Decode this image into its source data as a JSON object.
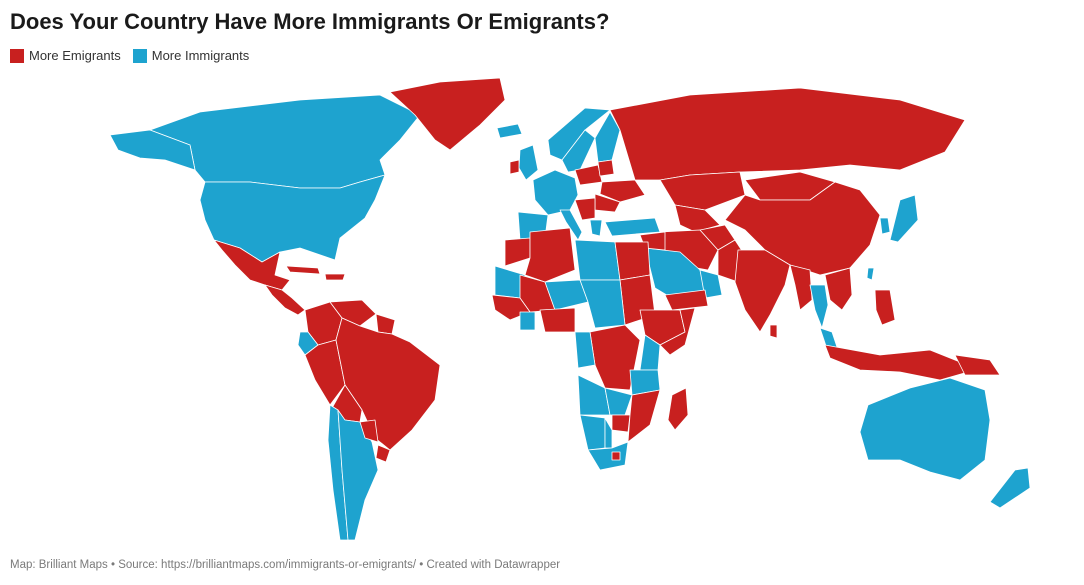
{
  "title": "Does Your Country Have More Immigrants Or Emigrants?",
  "legend": {
    "items": [
      {
        "label": "More Emigrants",
        "color": "#c8201f"
      },
      {
        "label": "More Immigrants",
        "color": "#1ea3cf"
      }
    ]
  },
  "footer": {
    "map_by": "Map: Brilliant Maps",
    "sep1": " • ",
    "source_prefix": "Source: ",
    "source_url": "https://brilliantmaps.com/immigrants-or-emigrants/",
    "sep2": " • ",
    "credit": "Created with Datawrapper"
  },
  "map": {
    "category_colors": {
      "emigrants": "#c8201f",
      "immigrants": "#1ea3cf"
    },
    "regions": [
      {
        "name": "Canada",
        "category": "immigrants"
      },
      {
        "name": "United States",
        "category": "immigrants"
      },
      {
        "name": "Alaska",
        "category": "immigrants"
      },
      {
        "name": "Greenland",
        "category": "emigrants"
      },
      {
        "name": "Mexico",
        "category": "emigrants"
      },
      {
        "name": "Central America",
        "category": "emigrants"
      },
      {
        "name": "Cuba",
        "category": "emigrants"
      },
      {
        "name": "Hispaniola",
        "category": "emigrants"
      },
      {
        "name": "Colombia",
        "category": "emigrants"
      },
      {
        "name": "Venezuela",
        "category": "emigrants"
      },
      {
        "name": "Guianas",
        "category": "emigrants"
      },
      {
        "name": "Ecuador",
        "category": "immigrants"
      },
      {
        "name": "Peru",
        "category": "emigrants"
      },
      {
        "name": "Brazil",
        "category": "emigrants"
      },
      {
        "name": "Bolivia",
        "category": "emigrants"
      },
      {
        "name": "Chile",
        "category": "immigrants"
      },
      {
        "name": "Argentina",
        "category": "immigrants"
      },
      {
        "name": "Uruguay",
        "category": "emigrants"
      },
      {
        "name": "Paraguay",
        "category": "emigrants"
      },
      {
        "name": "Iceland",
        "category": "immigrants"
      },
      {
        "name": "Norway",
        "category": "immigrants"
      },
      {
        "name": "Sweden",
        "category": "immigrants"
      },
      {
        "name": "Finland",
        "category": "immigrants"
      },
      {
        "name": "United Kingdom",
        "category": "immigrants"
      },
      {
        "name": "Ireland",
        "category": "emigrants"
      },
      {
        "name": "Western Europe",
        "category": "immigrants"
      },
      {
        "name": "Iberia",
        "category": "immigrants"
      },
      {
        "name": "Italy",
        "category": "immigrants"
      },
      {
        "name": "Poland",
        "category": "emigrants"
      },
      {
        "name": "Baltics",
        "category": "emigrants"
      },
      {
        "name": "Ukraine",
        "category": "emigrants"
      },
      {
        "name": "Romania",
        "category": "emigrants"
      },
      {
        "name": "Balkans",
        "category": "emigrants"
      },
      {
        "name": "Greece",
        "category": "immigrants"
      },
      {
        "name": "Turkey",
        "category": "immigrants"
      },
      {
        "name": "Russia",
        "category": "emigrants"
      },
      {
        "name": "Kazakhstan",
        "category": "emigrants"
      },
      {
        "name": "Central Asia",
        "category": "emigrants"
      },
      {
        "name": "Mongolia",
        "category": "emigrants"
      },
      {
        "name": "China",
        "category": "emigrants"
      },
      {
        "name": "South Korea",
        "category": "immigrants"
      },
      {
        "name": "Japan",
        "category": "immigrants"
      },
      {
        "name": "Taiwan",
        "category": "immigrants"
      },
      {
        "name": "Iran",
        "category": "emigrants"
      },
      {
        "name": "Afghanistan",
        "category": "emigrants"
      },
      {
        "name": "Pakistan",
        "category": "emigrants"
      },
      {
        "name": "India",
        "category": "emigrants"
      },
      {
        "name": "Sri Lanka",
        "category": "emigrants"
      },
      {
        "name": "Myanmar",
        "category": "emigrants"
      },
      {
        "name": "Thailand",
        "category": "immigrants"
      },
      {
        "name": "Indochina",
        "category": "emigrants"
      },
      {
        "name": "Malaysia",
        "category": "immigrants"
      },
      {
        "name": "Philippines",
        "category": "emigrants"
      },
      {
        "name": "Indonesia",
        "category": "emigrants"
      },
      {
        "name": "Papua New Guinea",
        "category": "emigrants"
      },
      {
        "name": "Australia",
        "category": "immigrants"
      },
      {
        "name": "New Zealand",
        "category": "immigrants"
      },
      {
        "name": "Saudi Arabia",
        "category": "immigrants"
      },
      {
        "name": "Gulf States",
        "category": "immigrants"
      },
      {
        "name": "Yemen",
        "category": "emigrants"
      },
      {
        "name": "Iraq",
        "category": "emigrants"
      },
      {
        "name": "Morocco",
        "category": "emigrants"
      },
      {
        "name": "Algeria",
        "category": "emigrants"
      },
      {
        "name": "Libya",
        "category": "immigrants"
      },
      {
        "name": "Egypt",
        "category": "emigrants"
      },
      {
        "name": "Sudan",
        "category": "emigrants"
      },
      {
        "name": "Mauritania",
        "category": "immigrants"
      },
      {
        "name": "Mali",
        "category": "emigrants"
      },
      {
        "name": "Niger",
        "category": "immigrants"
      },
      {
        "name": "Chad",
        "category": "immigrants"
      },
      {
        "name": "West Africa Coast",
        "category": "emigrants"
      },
      {
        "name": "Ivory Coast",
        "category": "immigrants"
      },
      {
        "name": "Nigeria",
        "category": "emigrants"
      },
      {
        "name": "Ethiopia",
        "category": "emigrants"
      },
      {
        "name": "Somalia",
        "category": "emigrants"
      },
      {
        "name": "Kenya",
        "category": "immigrants"
      },
      {
        "name": "DR Congo",
        "category": "emigrants"
      },
      {
        "name": "Congo",
        "category": "immigrants"
      },
      {
        "name": "Angola",
        "category": "immigrants"
      },
      {
        "name": "Tanzania",
        "category": "immigrants"
      },
      {
        "name": "Zambia",
        "category": "immigrants"
      },
      {
        "name": "Zimbabwe",
        "category": "emigrants"
      },
      {
        "name": "Mozambique",
        "category": "emigrants"
      },
      {
        "name": "Namibia",
        "category": "immigrants"
      },
      {
        "name": "Botswana",
        "category": "immigrants"
      },
      {
        "name": "South Africa",
        "category": "immigrants"
      },
      {
        "name": "Lesotho",
        "category": "emigrants"
      },
      {
        "name": "Madagascar",
        "category": "emigrants"
      }
    ]
  }
}
